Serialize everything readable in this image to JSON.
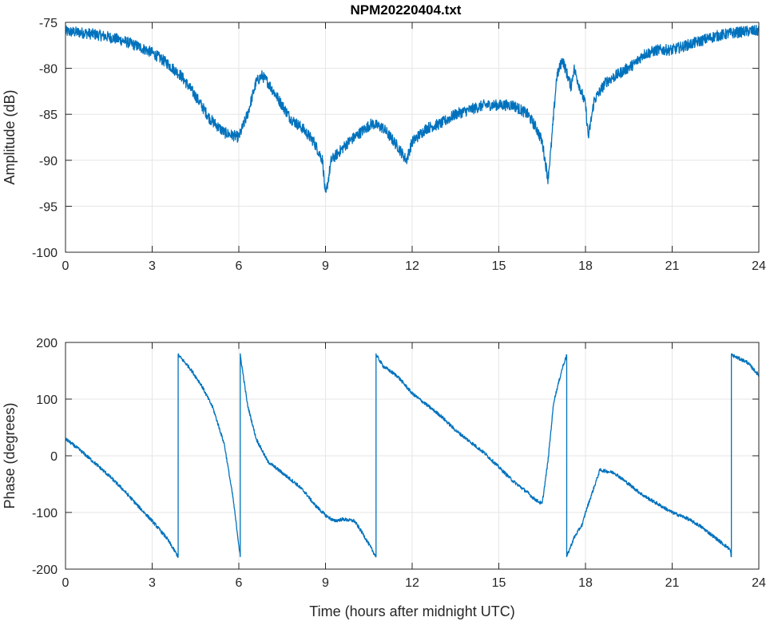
{
  "figure": {
    "title": "NPM20220404.txt"
  },
  "colors": {
    "line": "#0072BD",
    "grid": "#E6E6E6",
    "axis": "#262626",
    "background": "#FFFFFF"
  },
  "chart_data": [
    {
      "type": "line",
      "title": "NPM20220404.txt",
      "xlabel": "",
      "ylabel": "Amplitude (dB)",
      "xlim": [
        0,
        24
      ],
      "ylim": [
        -100,
        -75
      ],
      "xticks": [
        0,
        3,
        6,
        9,
        12,
        15,
        18,
        21,
        24
      ],
      "yticks": [
        -75,
        -80,
        -85,
        -90,
        -95,
        -100
      ],
      "xtick_labels": [
        "0",
        "3",
        "6",
        "9",
        "12",
        "15",
        "18",
        "21",
        "24"
      ],
      "ytick_labels": [
        "-75",
        "-80",
        "-85",
        "-90",
        "-95",
        "-100"
      ],
      "grid": true,
      "noise": 0.6,
      "series": [
        {
          "x": [
            0,
            0.5,
            1,
            1.5,
            2,
            2.5,
            3,
            3.5,
            4,
            4.5,
            5,
            5.5,
            6,
            6.3,
            6.6,
            6.8,
            7,
            7.2,
            7.5,
            7.8,
            8.2,
            8.6,
            8.9,
            9,
            9.2,
            9.5,
            9.8,
            10.2,
            10.6,
            11,
            11.5,
            11.8,
            12,
            12.5,
            13,
            13.5,
            14,
            14.5,
            15,
            15.5,
            16,
            16.3,
            16.5,
            16.7,
            16.8,
            17,
            17.2,
            17.5,
            17.6,
            17.8,
            18,
            18.1,
            18.3,
            18.7,
            19.2,
            19.7,
            20,
            20.5,
            21,
            21.5,
            22,
            22.5,
            23,
            23.5,
            24
          ],
          "y": [
            -76,
            -76.1,
            -76.3,
            -76.6,
            -77,
            -77.6,
            -78.3,
            -79.4,
            -80.8,
            -83,
            -85.5,
            -87,
            -87.5,
            -85,
            -81.5,
            -80.8,
            -81.5,
            -82.5,
            -84,
            -85.5,
            -86.5,
            -88,
            -90,
            -94,
            -90,
            -89,
            -88,
            -87,
            -86,
            -86.5,
            -88.5,
            -90,
            -88,
            -86.5,
            -86,
            -85,
            -84.5,
            -84,
            -84,
            -84,
            -85,
            -86.5,
            -88,
            -92,
            -89,
            -81,
            -79,
            -82,
            -80,
            -82,
            -84,
            -87.5,
            -83.5,
            -81.5,
            -80.5,
            -79.5,
            -78.5,
            -78,
            -78,
            -77.5,
            -77,
            -76.5,
            -76.2,
            -76,
            -75.9
          ]
        }
      ]
    },
    {
      "type": "line",
      "title": "",
      "xlabel": "Time (hours after midnight UTC)",
      "ylabel": "Phase (degrees)",
      "xlim": [
        0,
        24
      ],
      "ylim": [
        -200,
        200
      ],
      "xticks": [
        0,
        3,
        6,
        9,
        12,
        15,
        18,
        21,
        24
      ],
      "yticks": [
        200,
        100,
        0,
        -100,
        -200
      ],
      "xtick_labels": [
        "0",
        "3",
        "6",
        "9",
        "12",
        "15",
        "18",
        "21",
        "24"
      ],
      "ytick_labels": [
        "200",
        "100",
        "0",
        "-100",
        "-200"
      ],
      "grid": true,
      "noise": 3,
      "series": [
        {
          "x": [
            0,
            0.5,
            1,
            1.5,
            2,
            2.5,
            3,
            3.5,
            3.9,
            3.9,
            4.3,
            4.7,
            5.1,
            5.5,
            5.8,
            6.05,
            6.05,
            6.3,
            6.6,
            7,
            7.5,
            8,
            8.3,
            8.6,
            9,
            9.3,
            9.6,
            10,
            10.3,
            10.6,
            10.75,
            10.75,
            11,
            11.5,
            12,
            12.5,
            13,
            13.5,
            14,
            14.5,
            15,
            15.5,
            16,
            16.2,
            16.5,
            16.7,
            16.9,
            17.2,
            17.35,
            17.35,
            17.6,
            17.9,
            18,
            18.2,
            18.5,
            19,
            19.5,
            20,
            20.5,
            21,
            21.5,
            22,
            22.5,
            23,
            23.05,
            23.05,
            23.3,
            23.6,
            24
          ],
          "y": [
            30,
            10,
            -12,
            -35,
            -60,
            -88,
            -115,
            -145,
            -178,
            178,
            155,
            125,
            85,
            20,
            -75,
            -178,
            178,
            90,
            30,
            -10,
            -30,
            -50,
            -65,
            -85,
            -105,
            -115,
            -112,
            -115,
            -138,
            -165,
            -178,
            178,
            158,
            140,
            110,
            90,
            70,
            45,
            25,
            5,
            -20,
            -45,
            -65,
            -75,
            -85,
            -10,
            95,
            155,
            178,
            -178,
            -145,
            -120,
            -100,
            -70,
            -25,
            -30,
            -50,
            -70,
            -85,
            -100,
            -110,
            -125,
            -145,
            -165,
            -178,
            178,
            172,
            165,
            142
          ]
        }
      ]
    }
  ]
}
